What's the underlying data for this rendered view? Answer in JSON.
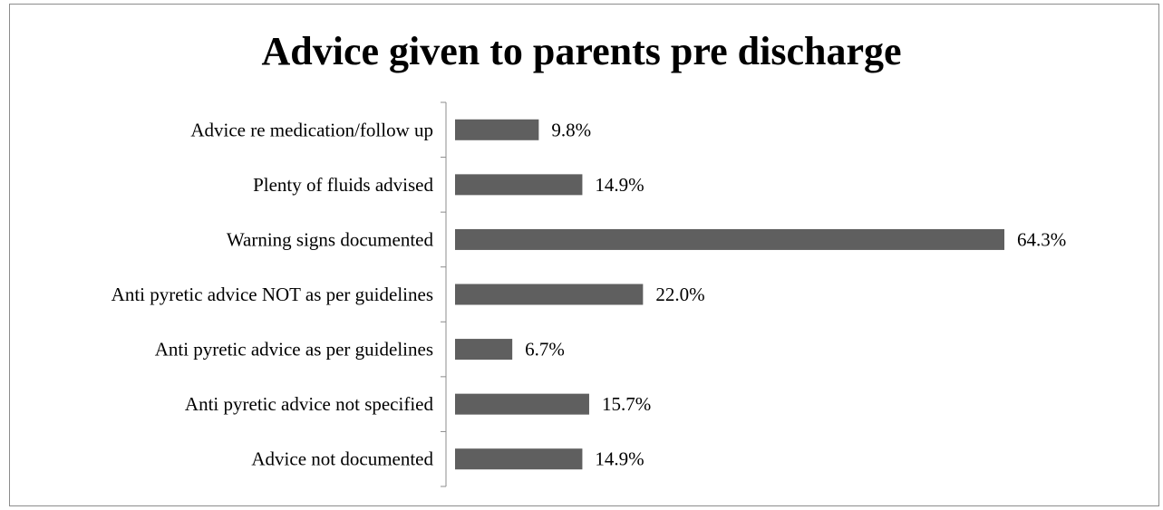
{
  "chart_data": {
    "type": "bar",
    "orientation": "horizontal",
    "title": "Advice given to parents pre discharge",
    "categories": [
      "Advice re medication/follow up",
      "Plenty of fluids advised",
      "Warning signs documented",
      "Anti pyretic advice NOT as per guidelines",
      "Anti pyretic advice as per guidelines",
      "Anti pyretic advice not specified",
      "Advice not documented"
    ],
    "values": [
      9.8,
      14.9,
      64.3,
      22.0,
      6.7,
      15.7,
      14.9
    ],
    "value_labels": [
      "9.8%",
      "14.9%",
      "64.3%",
      "22.0%",
      "6.7%",
      "15.7%",
      "14.9%"
    ],
    "xlim": [
      0,
      70
    ],
    "grid": false,
    "legend": "none",
    "bar_color": "#5f5f5f"
  }
}
